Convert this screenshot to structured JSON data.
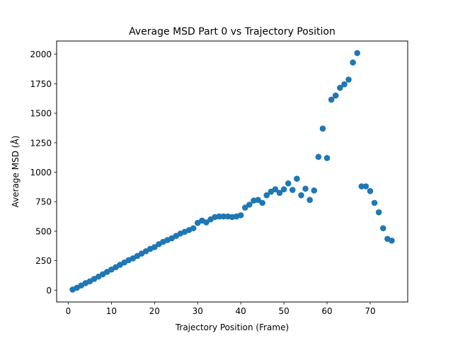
{
  "chart_data": {
    "type": "scatter",
    "title": "Average MSD Part 0 vs Trajectory Position",
    "xlabel": "Trajectory Position (Frame)",
    "ylabel": "Average MSD (Å)",
    "xlim": [
      -2.7,
      78.7
    ],
    "ylim": [
      -100,
      2112
    ],
    "xticks": [
      0,
      10,
      20,
      30,
      40,
      50,
      60,
      70
    ],
    "yticks": [
      0,
      250,
      500,
      750,
      1000,
      1250,
      1500,
      1750,
      2000
    ],
    "grid": false,
    "legend": "none",
    "series": [
      {
        "color": "#1f77b4",
        "x": [
          1,
          2,
          3,
          4,
          5,
          6,
          7,
          8,
          9,
          10,
          11,
          12,
          13,
          14,
          15,
          16,
          17,
          18,
          19,
          20,
          21,
          22,
          23,
          24,
          25,
          26,
          27,
          28,
          29,
          30,
          31,
          32,
          33,
          34,
          35,
          36,
          37,
          38,
          39,
          40,
          41,
          42,
          43,
          44,
          45,
          46,
          47,
          48,
          49,
          50,
          51,
          52,
          53,
          54,
          55,
          56,
          57,
          58,
          59,
          60,
          61,
          62,
          63,
          64,
          65,
          66,
          67,
          68,
          69,
          70,
          71,
          72,
          73,
          74,
          75
        ],
        "y": [
          5,
          20,
          40,
          60,
          75,
          95,
          115,
          135,
          155,
          175,
          195,
          215,
          235,
          255,
          270,
          290,
          310,
          330,
          350,
          365,
          390,
          410,
          425,
          440,
          460,
          480,
          495,
          510,
          525,
          570,
          590,
          575,
          600,
          620,
          625,
          625,
          625,
          620,
          625,
          635,
          700,
          725,
          760,
          765,
          740,
          805,
          835,
          855,
          825,
          855,
          905,
          850,
          945,
          805,
          860,
          765,
          845,
          1130,
          1370,
          1120,
          1615,
          1650,
          1715,
          1745,
          1785,
          1930,
          2010,
          880,
          880,
          840,
          740,
          660,
          525,
          435,
          420
        ]
      }
    ]
  }
}
